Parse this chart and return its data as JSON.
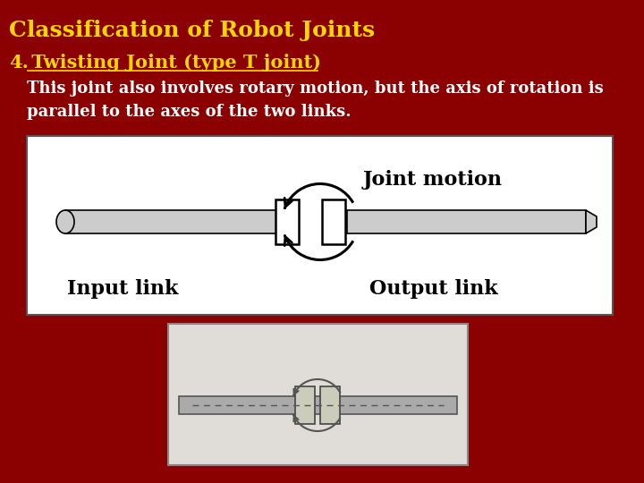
{
  "bg_color": "#8B0000",
  "title": "Classification of Robot Joints",
  "title_color": "#FFD700",
  "title_fontsize": 18,
  "subtitle_num": "4.",
  "subtitle_text": " Twisting Joint (type T joint)",
  "subtitle_color": "#FFD700",
  "subtitle_fontsize": 15,
  "body_text": "This joint also involves rotary motion, but the axis of rotation is\nparallel to the axes of the two links.",
  "body_color": "#FFFFFF",
  "body_fontsize": 13,
  "joint_motion_label": "Joint motion",
  "input_link_label": "Input link",
  "output_link_label": "Output link",
  "label_fontsize": 16
}
